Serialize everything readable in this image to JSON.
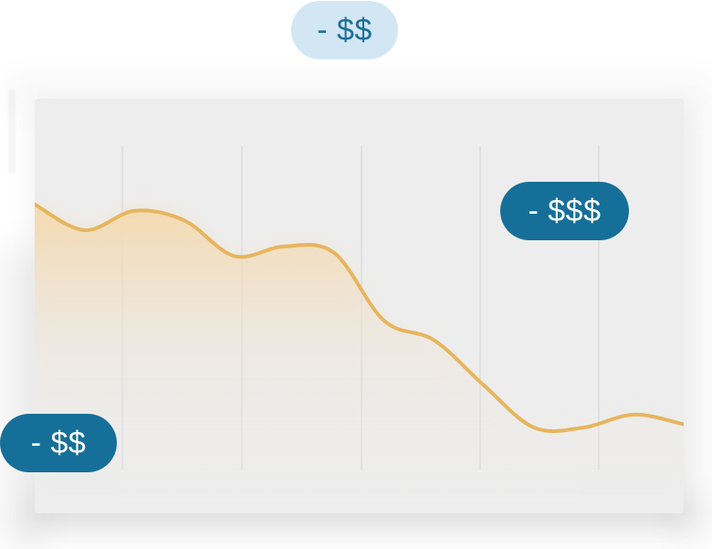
{
  "chart_data": {
    "type": "area",
    "x": [
      0,
      1,
      2,
      3,
      4,
      5,
      6,
      7,
      8,
      9,
      10,
      11,
      12,
      13
    ],
    "series": [
      {
        "values": [
          82,
          74,
          80,
          77,
          66,
          69,
          67,
          46,
          40,
          26,
          13,
          13,
          17,
          14
        ]
      }
    ],
    "xlim": [
      0,
      13
    ],
    "ylim": [
      0,
      100
    ],
    "grid": true,
    "colors": {
      "line": "#e7b55d",
      "fill": "#f4d9ad",
      "grid": "#d4d4d4",
      "background": "#ededed",
      "accent_dark": "#156f98",
      "accent_light": "#d2e7f3"
    }
  },
  "badges": {
    "top": "- $$",
    "right": "- $$$",
    "left": "- $$"
  }
}
